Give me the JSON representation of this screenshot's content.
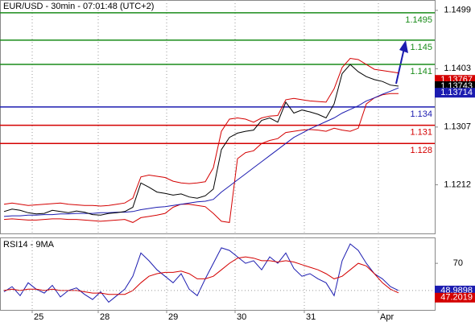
{
  "chart_data": [
    {
      "type": "line",
      "title": "EUR/USD - 30min - 07:01:48 (UTC+2)",
      "x": [
        0,
        1,
        2,
        3,
        4,
        5,
        6,
        7,
        8,
        9,
        10,
        11,
        12,
        13,
        14,
        15,
        16,
        17,
        18,
        19,
        20,
        21,
        22,
        23,
        24,
        25,
        26,
        27,
        28,
        29,
        30,
        31,
        32,
        33,
        34,
        35,
        36,
        37,
        38,
        39,
        40,
        41,
        42,
        43,
        44,
        45,
        46,
        47,
        48,
        49
      ],
      "xlim": [
        -0.5,
        53.5
      ],
      "ylim": [
        1.1132,
        1.1516
      ],
      "yticks": [
        1.1499,
        1.1403,
        1.1307,
        1.1212
      ],
      "series": [
        {
          "color": "#d40000",
          "values": [
            1.118,
            1.1182,
            1.118,
            1.1178,
            1.1179,
            1.118,
            1.1181,
            1.1182,
            1.118,
            1.1179,
            1.1178,
            1.1178,
            1.1177,
            1.1178,
            1.118,
            1.1182,
            1.119,
            1.1225,
            1.1228,
            1.1226,
            1.1224,
            1.1218,
            1.1215,
            1.1214,
            1.1215,
            1.1217,
            1.124,
            1.13,
            1.132,
            1.1322,
            1.132,
            1.1315,
            1.1322,
            1.1325,
            1.1326,
            1.1352,
            1.1354,
            1.1352,
            1.135,
            1.1349,
            1.1348,
            1.137,
            1.1405,
            1.142,
            1.1418,
            1.141,
            1.1402,
            1.14,
            1.1398,
            1.1396
          ]
        },
        {
          "color": "#d40000",
          "values": [
            1.1155,
            1.1156,
            1.1155,
            1.1154,
            1.1154,
            1.1155,
            1.1156,
            1.1156,
            1.1155,
            1.1155,
            1.1154,
            1.1153,
            1.1152,
            1.1153,
            1.1154,
            1.1155,
            1.115,
            1.1158,
            1.116,
            1.1162,
            1.1165,
            1.1175,
            1.118,
            1.118,
            1.1178,
            1.1176,
            1.1165,
            1.1152,
            1.115,
            1.1255,
            1.1265,
            1.1268,
            1.128,
            1.1285,
            1.1288,
            1.1298,
            1.13,
            1.1302,
            1.1303,
            1.1302,
            1.13,
            1.1305,
            1.1302,
            1.13,
            1.1305,
            1.1345,
            1.1355,
            1.136,
            1.1362,
            1.1362
          ]
        },
        {
          "color": "#1c1cb0",
          "values": [
            1.116,
            1.1161,
            1.1161,
            1.1162,
            1.1162,
            1.1163,
            1.1163,
            1.1164,
            1.1164,
            1.1165,
            1.1165,
            1.1165,
            1.1166,
            1.1166,
            1.1167,
            1.1167,
            1.1168,
            1.1171,
            1.1173,
            1.1175,
            1.1176,
            1.1178,
            1.118,
            1.1182,
            1.1184,
            1.1185,
            1.1188,
            1.12,
            1.121,
            1.122,
            1.123,
            1.124,
            1.125,
            1.126,
            1.127,
            1.128,
            1.129,
            1.1297,
            1.1304,
            1.131,
            1.1316,
            1.1322,
            1.133,
            1.1336,
            1.1342,
            1.135,
            1.1355,
            1.1361,
            1.1366,
            1.13714
          ]
        },
        {
          "color": "#000000",
          "values": [
            1.1168,
            1.1172,
            1.117,
            1.1166,
            1.1164,
            1.1165,
            1.117,
            1.1168,
            1.1166,
            1.1169,
            1.1167,
            1.1163,
            1.1162,
            1.1165,
            1.1166,
            1.1168,
            1.1175,
            1.1215,
            1.1208,
            1.12,
            1.1198,
            1.1195,
            1.1197,
            1.1192,
            1.119,
            1.1194,
            1.1205,
            1.127,
            1.129,
            1.1297,
            1.13,
            1.1302,
            1.1318,
            1.1322,
            1.1315,
            1.1348,
            1.133,
            1.1335,
            1.1332,
            1.1328,
            1.1322,
            1.1345,
            1.1395,
            1.141,
            1.1398,
            1.139,
            1.1385,
            1.1382,
            1.1376,
            1.13743
          ]
        }
      ],
      "levels": [
        {
          "value": 1.1495,
          "color": "#1a8c1a"
        },
        {
          "value": 1.145,
          "color": "#1a8c1a"
        },
        {
          "value": 1.141,
          "color": "#1a8c1a"
        },
        {
          "value": 1.134,
          "color": "#1c1cb0"
        },
        {
          "value": 1.131,
          "color": "#d40000"
        },
        {
          "value": 1.128,
          "color": "#d40000"
        }
      ],
      "price_labels": [
        {
          "value": 1.13767,
          "color": "#d40000"
        },
        {
          "value": 1.13743,
          "color": "#000000"
        },
        {
          "value": 1.13714,
          "color": "#1c1cb0"
        }
      ]
    },
    {
      "type": "line",
      "title": "RSI14 - 9MA",
      "xlim": [
        -0.5,
        53.5
      ],
      "xticks": [
        {
          "value": 3.5,
          "label": "25"
        },
        {
          "value": 11.7,
          "label": "28"
        },
        {
          "value": 20.2,
          "label": "29"
        },
        {
          "value": 28.7,
          "label": "30"
        },
        {
          "value": 37.3,
          "label": "31"
        },
        {
          "value": 46.5,
          "label": "Apr"
        }
      ],
      "ylim": [
        34,
        90
      ],
      "yticks": [
        70
      ],
      "series": [
        {
          "color": "#1c1cb0",
          "values": [
            48,
            52,
            45,
            55,
            50,
            47,
            53,
            44,
            49,
            51,
            46,
            42,
            48,
            40,
            45,
            50,
            60,
            78,
            72,
            65,
            60,
            55,
            62,
            50,
            45,
            58,
            70,
            82,
            80,
            75,
            70,
            72,
            65,
            75,
            70,
            78,
            66,
            60,
            62,
            58,
            55,
            45,
            72,
            85,
            80,
            70,
            62,
            58,
            52,
            48.9898
          ]
        },
        {
          "color": "#d40000",
          "values": [
            49,
            50,
            49,
            50,
            50,
            49,
            50,
            49,
            49,
            49,
            48,
            47,
            47,
            46,
            46,
            46,
            49,
            55,
            60,
            62,
            63,
            63,
            64,
            62,
            58,
            58,
            60,
            65,
            70,
            74,
            75,
            74,
            72,
            72,
            71,
            72,
            71,
            69,
            67,
            65,
            62,
            58,
            60,
            65,
            70,
            68,
            62,
            55,
            50,
            47.2019
          ]
        }
      ]
    }
  ]
}
